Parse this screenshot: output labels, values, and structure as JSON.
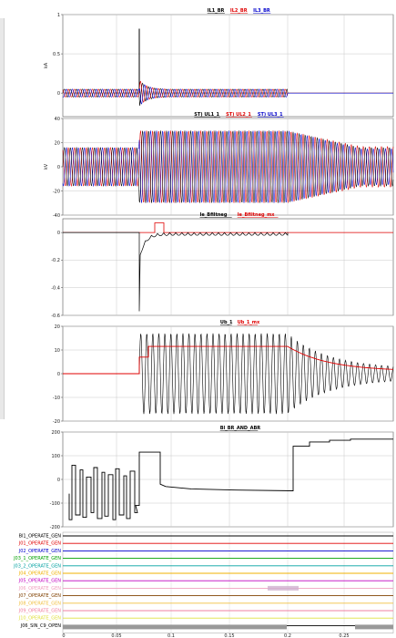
{
  "chart_data": [
    {
      "type": "line",
      "title_items": [
        {
          "text": "IL1_BR",
          "color": "#000000"
        },
        {
          "text": "IL2_BR",
          "color": "#e00000"
        },
        {
          "text": "IL3_BR",
          "color": "#0000cc"
        }
      ],
      "ylabel": "kA",
      "ylim": [
        -0.3,
        1.0
      ],
      "yticks": [
        "1",
        "0.5",
        "0",
        "-0.5"
      ],
      "ytick_values": [
        1,
        0.5,
        0,
        -0.5
      ],
      "series": [
        {
          "name": "IL1_BR",
          "color": "#000000",
          "shape": "sine",
          "amp_pre": 0.05,
          "amp_post": 0.05,
          "t_end": 0.53,
          "spike": 0.82
        },
        {
          "name": "IL2_BR",
          "color": "#e00000",
          "shape": "sine",
          "amp_pre": 0.05,
          "amp_post": 0.05,
          "t_end": 0.53
        },
        {
          "name": "IL3_BR",
          "color": "#0000cc",
          "shape": "sine",
          "amp_pre": 0.05,
          "amp_post": 0.05,
          "t_end": 0.53,
          "flat_after": 0
        }
      ]
    },
    {
      "type": "line",
      "title_items": [
        {
          "text": "ST) UL1_1",
          "color": "#000000"
        },
        {
          "text": "ST) UL2_1",
          "color": "#e00000"
        },
        {
          "text": "ST) UL3_1",
          "color": "#0000cc"
        }
      ],
      "ylabel": "kV",
      "ylim": [
        -40,
        40
      ],
      "yticks": [
        "40",
        "20",
        "0",
        "-20",
        "-40"
      ],
      "ytick_values": [
        40,
        20,
        0,
        -20,
        -40
      ],
      "series": [
        {
          "name": "ST) UL1_1",
          "color": "#000000",
          "shape": "sine",
          "amp_pre": 16,
          "amp_mid": 30,
          "amp_post": 16
        },
        {
          "name": "ST) UL2_1",
          "color": "#e00000",
          "shape": "sine",
          "amp_pre": 16,
          "amp_mid": 30,
          "amp_post": 17
        },
        {
          "name": "ST) UL3_1",
          "color": "#0000cc",
          "shape": "sine",
          "amp_pre": 16,
          "amp_mid": 30,
          "amp_post": 15
        }
      ]
    },
    {
      "type": "line",
      "title_items": [
        {
          "text": "Ie_Bfiltneg",
          "color": "#000000"
        },
        {
          "text": "Ie_Bfiltneg_mx",
          "color": "#e00000"
        }
      ],
      "ylabel": "",
      "ylim": [
        -0.6,
        0.1
      ],
      "yticks": [
        "0",
        "-0.2",
        "-0.4",
        "-0.6"
      ],
      "ytick_values": [
        0,
        -0.2,
        -0.4,
        -0.6
      ],
      "series": [
        {
          "name": "Ie_Bfiltneg",
          "color": "#000000",
          "shape": "transient"
        },
        {
          "name": "Ie_Bfiltneg_mx",
          "color": "#e00000",
          "shape": "step",
          "pulse": 0.07
        }
      ]
    },
    {
      "type": "line",
      "title_items": [
        {
          "text": "Ub_1",
          "color": "#000000"
        },
        {
          "text": "Ub_1_mx",
          "color": "#e00000"
        }
      ],
      "ylabel": "",
      "ylim": [
        -20,
        20
      ],
      "yticks": [
        "20",
        "10",
        "0",
        "-10",
        "-20"
      ],
      "ytick_values": [
        20,
        10,
        0,
        -10,
        -20
      ],
      "series": [
        {
          "name": "Ub_1",
          "color": "#000000",
          "shape": "decay_sine",
          "amp": 17,
          "amp_end": 2
        },
        {
          "name": "Ub_1_mx",
          "color": "#e00000",
          "shape": "rms",
          "level": 11.5,
          "level_end": 1
        }
      ]
    },
    {
      "type": "line",
      "title_items": [
        {
          "text": "Bl_BR_AND_ABR",
          "color": "#000000"
        }
      ],
      "ylabel": "",
      "ylim": [
        -200,
        200
      ],
      "yticks": [
        "200",
        "100",
        "0",
        "-100",
        "-200"
      ],
      "ytick_values": [
        200,
        100,
        0,
        -100,
        -200
      ],
      "series": [
        {
          "name": "Bl_BR_AND_ABR",
          "color": "#000000",
          "shape": "steps",
          "x": [
            0.0,
            0.3,
            0.35,
            0.38,
            0.4,
            0.5,
            0.55,
            0.6,
            0.65,
            0.7,
            0.75,
            0.8,
            0.85,
            1.0
          ],
          "y": [
            -130,
            115,
            -20,
            -30,
            -40,
            -45,
            -48,
            -50,
            -50,
            140,
            160,
            165,
            170,
            170
          ]
        }
      ]
    },
    {
      "type": "digital",
      "channels": [
        {
          "label": "Bl1_OPERATE_GEN",
          "color": "#000000"
        },
        {
          "label": "J01_OPERATE_GEN",
          "color": "#e00000"
        },
        {
          "label": "J02_OPERATE_GEN",
          "color": "#0000cc"
        },
        {
          "label": "J03_1_OPERATE_GEN",
          "color": "#00a000"
        },
        {
          "label": "J03_2_OPERATE_GEN",
          "color": "#00a0a0"
        },
        {
          "label": "J04_OPERATE_GEN",
          "color": "#f0b000"
        },
        {
          "label": "J05_OPERATE_GEN",
          "color": "#c000c0"
        },
        {
          "label": "J06_OPERATE_GEN",
          "color": "#f0a0c0"
        },
        {
          "label": "J07_OPERATE_GEN",
          "color": "#804000"
        },
        {
          "label": "J08_OPERATE_GEN",
          "color": "#f0c040"
        },
        {
          "label": "J09_OPERATE_GEN",
          "color": "#f080a0"
        },
        {
          "label": "J10_OPERATE_GEN",
          "color": "#e0e040"
        },
        {
          "label": "J06_SIN_C9_OPEN",
          "color": "#000000"
        }
      ]
    }
  ],
  "xaxis": {
    "ticks": [
      "0",
      "0.05",
      "0.1",
      "0.15",
      "0.2",
      "0.25"
    ]
  }
}
